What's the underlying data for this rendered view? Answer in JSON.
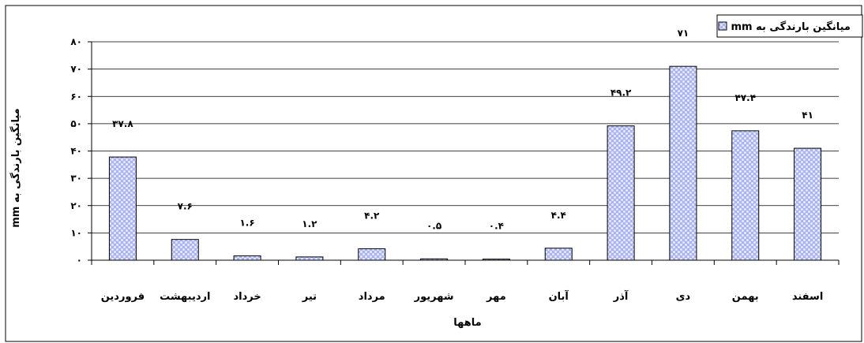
{
  "chart_data": {
    "type": "bar",
    "title": "",
    "xlabel": "ماهها",
    "ylabel": "میانگین بارندگی به mm",
    "ylim": [
      0,
      80
    ],
    "y_ticks": [
      0,
      10,
      20,
      30,
      40,
      50,
      60,
      70,
      80
    ],
    "y_tick_labels": [
      "۰",
      "۱۰",
      "۲۰",
      "۳۰",
      "۴۰",
      "۵۰",
      "۶۰",
      "۷۰",
      "۸۰"
    ],
    "grid": true,
    "legend": {
      "position": "top-right",
      "label": "میانگین بارندگی به mm"
    },
    "categories": [
      "فروردین",
      "اردیبهشت",
      "خرداد",
      "تیر",
      "مرداد",
      "شهریور",
      "مهر",
      "آبان",
      "آذر",
      "دی",
      "بهمن",
      "اسفند"
    ],
    "series": [
      {
        "name": "میانگین بارندگی به mm",
        "values": [
          37.8,
          7.6,
          1.6,
          1.2,
          4.2,
          0.5,
          0.4,
          4.4,
          49.2,
          71,
          47.4,
          41
        ],
        "labels": [
          "۳۷.۸",
          "۷.۶",
          "۱.۶",
          "۱.۲",
          "۴.۲",
          "۰.۵",
          "۰.۴",
          "۴.۴",
          "۴۹.۲",
          "۷۱",
          "۴۷.۴",
          "۴۱"
        ]
      }
    ],
    "colors": {
      "bar_fill": "#aab4f0",
      "bar_dots": "#e8eafc",
      "bar_stroke": "#000000",
      "grid": "#000000",
      "frame": "#000000"
    }
  }
}
